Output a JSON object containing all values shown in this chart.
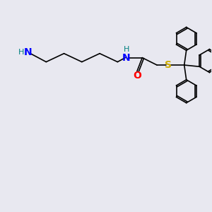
{
  "bg_color": "#e8e8f0",
  "bond_color": "#000000",
  "N_color": "#0000ff",
  "O_color": "#ff0000",
  "S_color": "#ccaa00",
  "H_color": "#008080",
  "line_width": 1.2,
  "figsize": [
    3.0,
    3.0
  ],
  "dpi": 100,
  "xlim": [
    0,
    10
  ],
  "ylim": [
    0,
    10
  ]
}
